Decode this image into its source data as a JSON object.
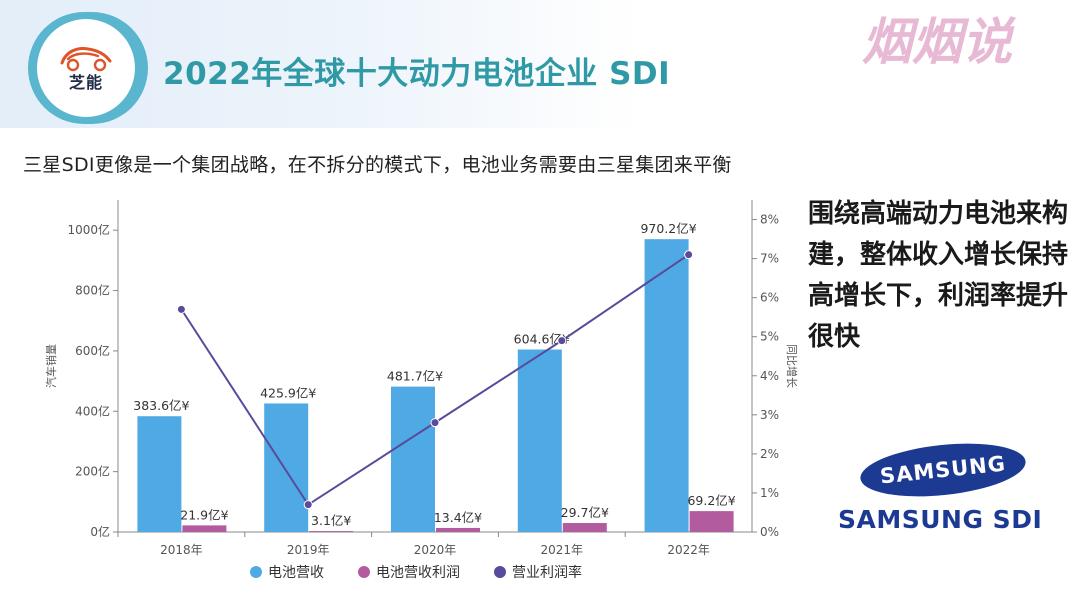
{
  "header": {
    "logo_text": "芝能",
    "title": "2022年全球十大动力电池企业 SDI",
    "watermark": "烟烟说"
  },
  "subtitle": "三星SDI更像是一个集团战略，在不拆分的模式下，电池业务需要由三星集团来平衡",
  "side_note": "围绕高端动力电池来构建，整体收入增长保持高增长下，利润率提升很快",
  "samsung": {
    "oval_text": "SAMSUNG",
    "sdi_text": "SAMSUNG SDI",
    "brand_color": "#1c3a91"
  },
  "chart_data": {
    "type": "bar",
    "categories": [
      "2018年",
      "2019年",
      "2020年",
      "2021年",
      "2022年"
    ],
    "series": [
      {
        "name": "电池营收",
        "kind": "bar",
        "axis": "left",
        "color": "#4fa9e4",
        "values": [
          383.6,
          425.9,
          481.7,
          604.6,
          970.2
        ],
        "labels": [
          "383.6亿¥",
          "425.9亿¥",
          "481.7亿¥",
          "604.6亿¥",
          "970.2亿¥"
        ]
      },
      {
        "name": "电池营收利润",
        "kind": "bar",
        "axis": "left",
        "color": "#b25c9f",
        "values": [
          21.9,
          3.1,
          13.4,
          29.7,
          69.2
        ],
        "labels": [
          "21.9亿¥",
          "3.1亿¥",
          "13.4亿¥",
          "29.7亿¥",
          "69.2亿¥"
        ]
      },
      {
        "name": "营业利润率",
        "kind": "line",
        "axis": "right",
        "color": "#5a4a9c",
        "values": [
          5.7,
          0.7,
          2.8,
          4.9,
          7.1
        ]
      }
    ],
    "ylabel": "汽车销量",
    "y2label": "同比增长",
    "ylim": [
      0,
      1100
    ],
    "y2lim": [
      0,
      8.5
    ],
    "yticks": [
      0,
      200,
      400,
      600,
      800,
      1000
    ],
    "ytick_labels": [
      "0亿",
      "200亿",
      "400亿",
      "600亿",
      "800亿",
      "1000亿"
    ],
    "y2ticks": [
      0,
      1,
      2,
      3,
      4,
      5,
      6,
      7,
      8
    ],
    "y2tick_labels": [
      "0%",
      "1%",
      "2%",
      "3%",
      "4%",
      "5%",
      "6%",
      "7%",
      "8%"
    ],
    "legend_position": "bottom-center"
  }
}
